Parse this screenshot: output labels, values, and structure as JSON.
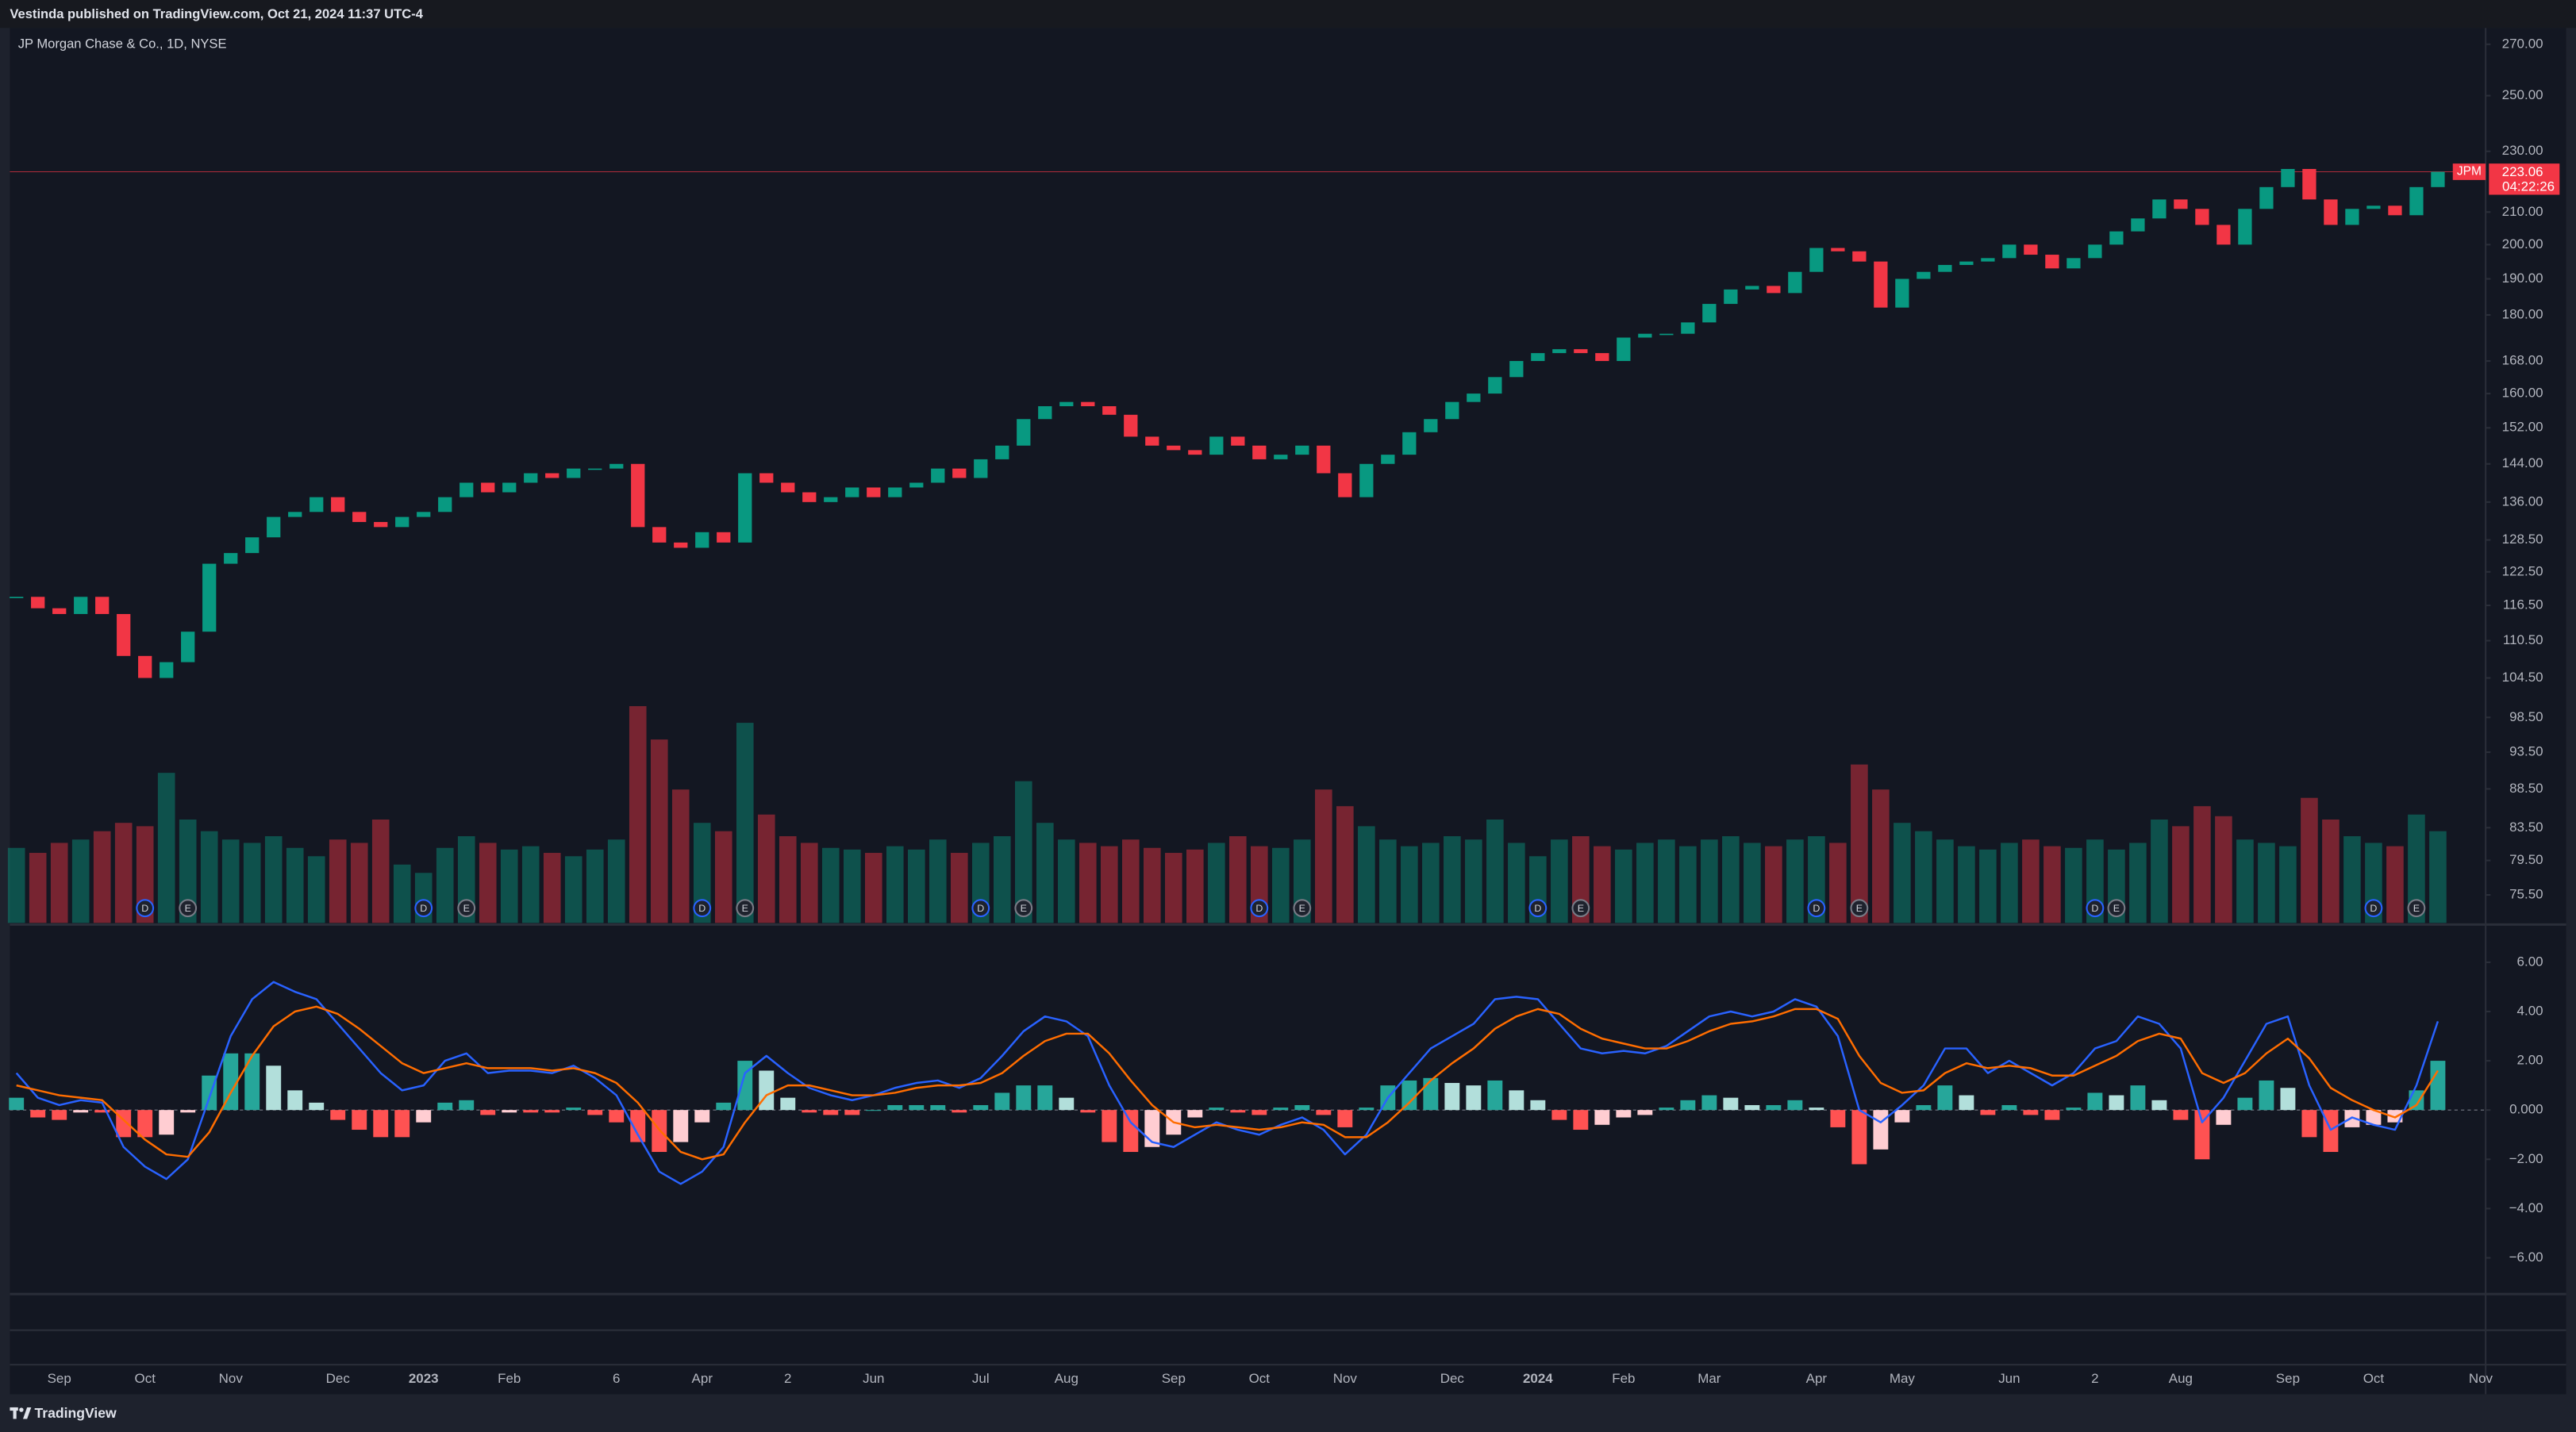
{
  "header": "Vestinda published on TradingView.com, Oct 21, 2024 11:37 UTC-4",
  "footer": "TradingView",
  "chart_data": {
    "type": "candlestick",
    "title": "JP Morgan Chase & Co., 1D, NYSE",
    "symbol": "JPM",
    "countdown": "04:22:26",
    "log_scale": true,
    "grid": false,
    "up_color": "#089981",
    "down_color": "#f23645",
    "ylim": [
      72.4,
      276.7
    ],
    "yticks": [
      {
        "value": 270,
        "label": "270.00"
      },
      {
        "value": 250,
        "label": "250.00"
      },
      {
        "value": 230,
        "label": "230.00"
      },
      {
        "value": 210,
        "label": "210.00"
      },
      {
        "value": 200,
        "label": "200.00"
      },
      {
        "value": 190,
        "label": "190.00"
      },
      {
        "value": 180,
        "label": "180.00"
      },
      {
        "value": 168,
        "label": "168.00"
      },
      {
        "value": 160,
        "label": "160.00"
      },
      {
        "value": 152,
        "label": "152.00"
      },
      {
        "value": 144,
        "label": "144.00"
      },
      {
        "value": 136,
        "label": "136.00"
      },
      {
        "value": 128.5,
        "label": "128.50"
      },
      {
        "value": 122.5,
        "label": "122.50"
      },
      {
        "value": 116.5,
        "label": "116.50"
      },
      {
        "value": 110.5,
        "label": "110.50"
      },
      {
        "value": 104.5,
        "label": "104.50"
      },
      {
        "value": 98.5,
        "label": "98.50"
      },
      {
        "value": 93.5,
        "label": "93.50"
      },
      {
        "value": 88.5,
        "label": "88.50"
      },
      {
        "value": 83.5,
        "label": "83.50"
      },
      {
        "value": 79.5,
        "label": "79.50"
      },
      {
        "value": 75.5,
        "label": "75.50"
      }
    ],
    "categories": [
      null,
      null,
      "Sep",
      null,
      null,
      null,
      "Oct",
      null,
      null,
      null,
      "Nov",
      null,
      null,
      null,
      null,
      "Dec",
      null,
      null,
      null,
      "2023",
      null,
      null,
      null,
      "Feb",
      null,
      null,
      null,
      null,
      "6",
      null,
      null,
      null,
      "Apr",
      null,
      null,
      null,
      "2",
      null,
      null,
      null,
      "Jun",
      null,
      null,
      null,
      null,
      "Jul",
      null,
      null,
      null,
      "Aug",
      null,
      null,
      null,
      null,
      "Sep",
      null,
      null,
      null,
      "Oct",
      null,
      null,
      null,
      "Nov",
      null,
      null,
      null,
      null,
      "Dec",
      null,
      null,
      null,
      "2024",
      null,
      null,
      null,
      "Feb",
      null,
      null,
      null,
      "Mar",
      null,
      null,
      null,
      null,
      "Apr",
      null,
      null,
      null,
      "May",
      null,
      null,
      null,
      null,
      "Jun",
      null,
      null,
      null,
      "2",
      null,
      null,
      null,
      "Aug",
      null,
      null,
      null,
      null,
      "Sep",
      null,
      null,
      null,
      "Oct",
      null,
      null,
      null,
      null,
      "Nov"
    ],
    "close": [
      118,
      116,
      115,
      118,
      115,
      108,
      104.5,
      107,
      112,
      124,
      126,
      129,
      133,
      134,
      137,
      134,
      132,
      131,
      133,
      134,
      137,
      140,
      138,
      140,
      142,
      141,
      143,
      143,
      144,
      131,
      128,
      127,
      130,
      128,
      142,
      140,
      138,
      136,
      137,
      139,
      137,
      139,
      140,
      143,
      141,
      145,
      148,
      154,
      157,
      158,
      157,
      155,
      150,
      148,
      147,
      146,
      150,
      148,
      145,
      146,
      148,
      142,
      137,
      144,
      146,
      151,
      154,
      158,
      160,
      164,
      168,
      170,
      171,
      170,
      168,
      174,
      175,
      175,
      178,
      183,
      187,
      188,
      186,
      192,
      199,
      198,
      195,
      182,
      190,
      192,
      194,
      195,
      196,
      200,
      197,
      193,
      196,
      200,
      204,
      208,
      214,
      211,
      206,
      200,
      211,
      218,
      224,
      214,
      206,
      211,
      212,
      209,
      218,
      223.06,
      null,
      null
    ],
    "volume": [
      45,
      42,
      48,
      50,
      55,
      60,
      58,
      90,
      62,
      55,
      50,
      48,
      52,
      45,
      40,
      50,
      48,
      62,
      35,
      30,
      45,
      52,
      48,
      44,
      46,
      42,
      40,
      44,
      50,
      130,
      110,
      80,
      60,
      55,
      120,
      65,
      52,
      48,
      45,
      44,
      42,
      46,
      44,
      50,
      42,
      48,
      52,
      85,
      60,
      50,
      48,
      46,
      50,
      45,
      42,
      44,
      48,
      52,
      46,
      45,
      50,
      80,
      70,
      58,
      50,
      46,
      48,
      52,
      50,
      62,
      48,
      40,
      50,
      52,
      46,
      44,
      48,
      50,
      46,
      50,
      52,
      48,
      46,
      50,
      52,
      48,
      95,
      80,
      60,
      55,
      50,
      46,
      44,
      48,
      50,
      46,
      45,
      50,
      44,
      48,
      62,
      58,
      70,
      64,
      50,
      48,
      46,
      75,
      62,
      52,
      48,
      46,
      65,
      55,
      null,
      null
    ],
    "events": [
      null,
      null,
      null,
      null,
      null,
      null,
      "D",
      null,
      "E",
      null,
      null,
      null,
      null,
      null,
      null,
      null,
      null,
      null,
      null,
      "D",
      null,
      "E",
      null,
      null,
      null,
      null,
      null,
      null,
      null,
      null,
      null,
      null,
      "D",
      null,
      "E",
      null,
      null,
      null,
      null,
      null,
      null,
      null,
      null,
      null,
      null,
      "D",
      null,
      "E",
      null,
      null,
      null,
      null,
      null,
      null,
      null,
      null,
      null,
      null,
      "D",
      null,
      "E",
      null,
      null,
      null,
      null,
      null,
      null,
      null,
      null,
      null,
      null,
      "D",
      null,
      "E",
      null,
      null,
      null,
      null,
      null,
      null,
      null,
      null,
      null,
      null,
      "D",
      null,
      "E",
      null,
      null,
      null,
      null,
      null,
      null,
      null,
      null,
      null,
      null,
      "D",
      "E",
      null,
      null,
      null,
      null,
      null,
      null,
      null,
      null,
      null,
      null,
      null,
      "D",
      null,
      "E",
      null,
      null,
      null
    ],
    "macd": {
      "ylim": [
        -7.47,
        7.53
      ],
      "yticks": [
        {
          "value": 6,
          "label": "6.00"
        },
        {
          "value": 4,
          "label": "4.00"
        },
        {
          "value": 2,
          "label": "2.00"
        },
        {
          "value": 0,
          "label": "0.000"
        },
        {
          "value": -2,
          "label": "−2.00"
        },
        {
          "value": -4,
          "label": "−4.00"
        },
        {
          "value": -6,
          "label": "−6.00"
        }
      ],
      "zero_line": true,
      "macd_color": "#2962ff",
      "signal_color": "#ff6d00",
      "histogram_colors": [
        "#26a69a",
        "#b2dfdb",
        "#ff5252",
        "#ffcdd2"
      ],
      "macd": [
        1.5,
        0.5,
        0.2,
        0.4,
        0.3,
        -1.5,
        -2.3,
        -2.8,
        -2.0,
        0.5,
        3.0,
        4.5,
        5.2,
        4.8,
        4.5,
        3.5,
        2.5,
        1.5,
        0.8,
        1.0,
        2.0,
        2.3,
        1.5,
        1.6,
        1.6,
        1.5,
        1.8,
        1.3,
        0.6,
        -1.0,
        -2.5,
        -3.0,
        -2.5,
        -1.5,
        1.5,
        2.2,
        1.5,
        0.9,
        0.6,
        0.4,
        0.6,
        0.9,
        1.1,
        1.2,
        0.9,
        1.3,
        2.2,
        3.2,
        3.8,
        3.6,
        3.0,
        1.0,
        -0.5,
        -1.3,
        -1.5,
        -1.0,
        -0.5,
        -0.8,
        -1.0,
        -0.6,
        -0.3,
        -0.8,
        -1.8,
        -1.0,
        0.5,
        1.5,
        2.5,
        3.0,
        3.5,
        4.5,
        4.6,
        4.5,
        3.5,
        2.5,
        2.3,
        2.4,
        2.3,
        2.6,
        3.2,
        3.8,
        4.0,
        3.8,
        4.0,
        4.5,
        4.2,
        3.0,
        0.0,
        -0.5,
        0.2,
        1.0,
        2.5,
        2.5,
        1.5,
        2.0,
        1.5,
        1.0,
        1.5,
        2.5,
        2.8,
        3.8,
        3.5,
        2.5,
        -0.5,
        0.5,
        2.0,
        3.5,
        3.8,
        1.0,
        -0.8,
        -0.3,
        -0.6,
        -0.8,
        1.0,
        3.6,
        null,
        null
      ],
      "signal": [
        1.0,
        0.8,
        0.6,
        0.5,
        0.4,
        -0.4,
        -1.2,
        -1.8,
        -1.9,
        -0.9,
        0.7,
        2.2,
        3.4,
        4.0,
        4.2,
        3.9,
        3.3,
        2.6,
        1.9,
        1.5,
        1.7,
        1.9,
        1.7,
        1.7,
        1.7,
        1.6,
        1.7,
        1.5,
        1.1,
        0.3,
        -0.8,
        -1.7,
        -2.0,
        -1.8,
        -0.5,
        0.6,
        1.0,
        1.0,
        0.8,
        0.6,
        0.6,
        0.7,
        0.9,
        1.0,
        1.0,
        1.1,
        1.5,
        2.2,
        2.8,
        3.1,
        3.1,
        2.3,
        1.2,
        0.2,
        -0.5,
        -0.7,
        -0.6,
        -0.7,
        -0.8,
        -0.7,
        -0.5,
        -0.6,
        -1.1,
        -1.1,
        -0.5,
        0.3,
        1.2,
        1.9,
        2.5,
        3.3,
        3.8,
        4.1,
        3.9,
        3.3,
        2.9,
        2.7,
        2.5,
        2.5,
        2.8,
        3.2,
        3.5,
        3.6,
        3.8,
        4.1,
        4.1,
        3.7,
        2.2,
        1.1,
        0.7,
        0.8,
        1.5,
        1.9,
        1.7,
        1.8,
        1.7,
        1.4,
        1.4,
        1.8,
        2.2,
        2.8,
        3.1,
        2.9,
        1.5,
        1.1,
        1.5,
        2.3,
        2.9,
        2.1,
        0.9,
        0.4,
        0.0,
        -0.3,
        0.2,
        1.6,
        null,
        null
      ],
      "histogram": [
        0.5,
        -0.3,
        -0.4,
        -0.1,
        -0.1,
        -1.1,
        -1.1,
        -1.0,
        -0.1,
        1.4,
        2.3,
        2.3,
        1.8,
        0.8,
        0.3,
        -0.4,
        -0.8,
        -1.1,
        -1.1,
        -0.5,
        0.3,
        0.4,
        -0.2,
        -0.1,
        -0.1,
        -0.1,
        0.1,
        -0.2,
        -0.5,
        -1.3,
        -1.7,
        -1.3,
        -0.5,
        0.3,
        2.0,
        1.6,
        0.5,
        -0.1,
        -0.2,
        -0.2,
        0.0,
        0.2,
        0.2,
        0.2,
        -0.1,
        0.2,
        0.7,
        1.0,
        1.0,
        0.5,
        -0.1,
        -1.3,
        -1.7,
        -1.5,
        -1.0,
        -0.3,
        0.1,
        -0.1,
        -0.2,
        0.1,
        0.2,
        -0.2,
        -0.7,
        0.1,
        1.0,
        1.2,
        1.3,
        1.1,
        1.0,
        1.2,
        0.8,
        0.4,
        -0.4,
        -0.8,
        -0.6,
        -0.3,
        -0.2,
        0.1,
        0.4,
        0.6,
        0.5,
        0.2,
        0.2,
        0.4,
        0.1,
        -0.7,
        -2.2,
        -1.6,
        -0.5,
        0.2,
        1.0,
        0.6,
        -0.2,
        0.2,
        -0.2,
        -0.4,
        0.1,
        0.7,
        0.6,
        1.0,
        0.4,
        -0.4,
        -2.0,
        -0.6,
        0.5,
        1.2,
        0.9,
        -1.1,
        -1.7,
        -0.7,
        -0.6,
        -0.5,
        0.8,
        2.0,
        null,
        null
      ]
    }
  }
}
